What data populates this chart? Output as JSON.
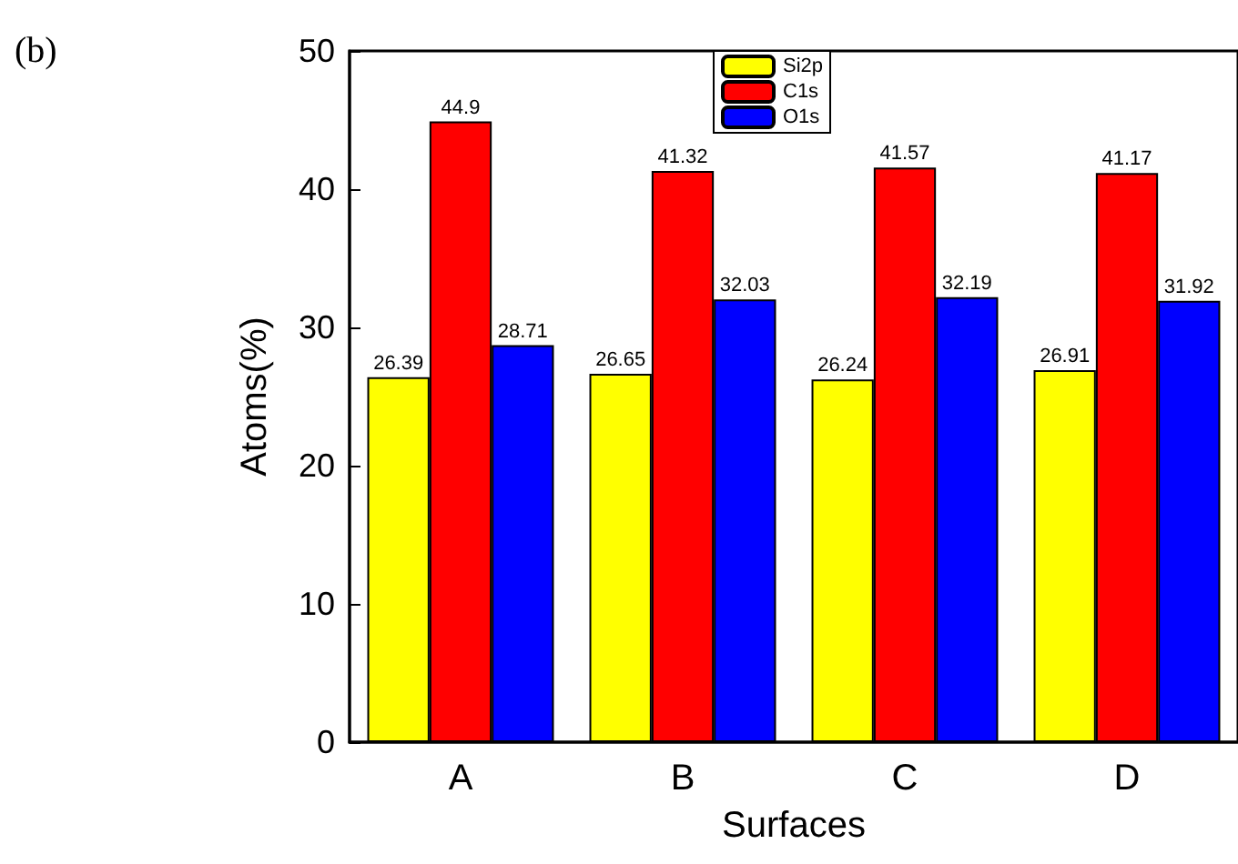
{
  "chart_data": {
    "type": "bar",
    "xlabel": "Surfaces",
    "ylabel": "Atoms(%)",
    "annotations": [
      "(b)"
    ],
    "categories": [
      "A",
      "B",
      "C",
      "D"
    ],
    "series": [
      {
        "name": "Si2p",
        "color": "#ffff00",
        "values": [
          26.39,
          26.65,
          26.24,
          26.91
        ]
      },
      {
        "name": "C1s",
        "color": "#ff0000",
        "values": [
          44.9,
          41.32,
          41.57,
          41.17
        ]
      },
      {
        "name": "O1s",
        "color": "#0000ff",
        "values": [
          28.71,
          32.03,
          32.19,
          31.92
        ]
      }
    ],
    "ylim": [
      0,
      50
    ],
    "yticks": [
      0,
      10,
      20,
      30,
      40,
      50
    ],
    "data_labels": true,
    "grid": false,
    "legend": "top"
  }
}
